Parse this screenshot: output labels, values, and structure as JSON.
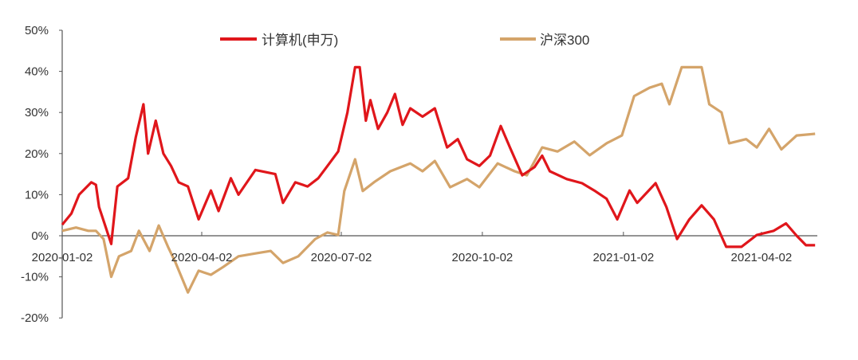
{
  "chart_data": {
    "type": "line",
    "title": "",
    "xlabel": "",
    "ylabel": "",
    "ylim": [
      -20,
      50
    ],
    "xlim": [
      "2020-01-02",
      "2021-05-07"
    ],
    "yticks": [
      "50%",
      "40%",
      "30%",
      "20%",
      "10%",
      "0%",
      "-10%",
      "-20%"
    ],
    "ytick_values": [
      50,
      40,
      30,
      20,
      10,
      0,
      -10,
      -20
    ],
    "xticks": [
      "2020-01-02",
      "2020-04-02",
      "2020-07-02",
      "2020-10-02",
      "2021-01-02",
      "2021-04-02"
    ],
    "grid": false,
    "legend_position": "top",
    "series": [
      {
        "name": "计算机(申万)",
        "color": "#e0161b",
        "points": [
          [
            "2020-01-02",
            2.7
          ],
          [
            "2020-01-08",
            5.4
          ],
          [
            "2020-01-13",
            10
          ],
          [
            "2020-01-21",
            13
          ],
          [
            "2020-01-24",
            12.4
          ],
          [
            "2020-01-26",
            7
          ],
          [
            "2020-02-03",
            -2
          ],
          [
            "2020-02-07",
            12
          ],
          [
            "2020-02-14",
            14
          ],
          [
            "2020-02-19",
            24
          ],
          [
            "2020-02-24",
            32
          ],
          [
            "2020-02-27",
            20
          ],
          [
            "2020-03-03",
            28
          ],
          [
            "2020-03-08",
            20
          ],
          [
            "2020-03-13",
            17
          ],
          [
            "2020-03-18",
            13
          ],
          [
            "2020-03-24",
            12
          ],
          [
            "2020-03-31",
            4
          ],
          [
            "2020-04-08",
            11
          ],
          [
            "2020-04-13",
            6
          ],
          [
            "2020-04-21",
            14
          ],
          [
            "2020-04-26",
            10
          ],
          [
            "2020-05-07",
            16
          ],
          [
            "2020-05-20",
            15
          ],
          [
            "2020-05-25",
            8
          ],
          [
            "2020-06-02",
            13
          ],
          [
            "2020-06-10",
            12
          ],
          [
            "2020-06-17",
            14
          ],
          [
            "2020-06-23",
            17
          ],
          [
            "2020-06-30",
            20.5
          ],
          [
            "2020-07-06",
            30
          ],
          [
            "2020-07-11",
            41
          ],
          [
            "2020-07-14",
            41
          ],
          [
            "2020-07-18",
            28
          ],
          [
            "2020-07-21",
            33
          ],
          [
            "2020-07-26",
            26
          ],
          [
            "2020-08-01",
            30
          ],
          [
            "2020-08-06",
            34.5
          ],
          [
            "2020-08-11",
            27
          ],
          [
            "2020-08-16",
            31
          ],
          [
            "2020-08-24",
            29
          ],
          [
            "2020-09-01",
            31
          ],
          [
            "2020-09-09",
            21.5
          ],
          [
            "2020-09-16",
            23.5
          ],
          [
            "2020-09-22",
            18.6
          ],
          [
            "2020-09-30",
            17
          ],
          [
            "2020-10-07",
            19.5
          ],
          [
            "2020-10-14",
            26.7
          ],
          [
            "2020-10-20",
            21.5
          ],
          [
            "2020-10-28",
            14.7
          ],
          [
            "2020-11-05",
            16.7
          ],
          [
            "2020-11-10",
            19.5
          ],
          [
            "2020-11-15",
            15.7
          ],
          [
            "2020-11-26",
            13.8
          ],
          [
            "2020-12-06",
            12.8
          ],
          [
            "2020-12-14",
            11
          ],
          [
            "2020-12-22",
            9
          ],
          [
            "2020-12-29",
            4
          ],
          [
            "2021-01-06",
            11
          ],
          [
            "2021-01-11",
            8
          ],
          [
            "2021-01-23",
            12.8
          ],
          [
            "2021-01-30",
            7
          ],
          [
            "2021-02-06",
            -0.8
          ],
          [
            "2021-02-14",
            4
          ],
          [
            "2021-02-22",
            7.4
          ],
          [
            "2021-03-02",
            4
          ],
          [
            "2021-03-10",
            -2.7
          ],
          [
            "2021-03-20",
            -2.7
          ],
          [
            "2021-03-30",
            0.2
          ],
          [
            "2021-04-10",
            1.2
          ],
          [
            "2021-04-18",
            3
          ],
          [
            "2021-04-25",
            0
          ],
          [
            "2021-05-01",
            -2.3
          ],
          [
            "2021-05-07",
            -2.3
          ]
        ]
      },
      {
        "name": "沪深300",
        "color": "#d4a46a",
        "points": [
          [
            "2020-01-02",
            1.2
          ],
          [
            "2020-01-11",
            2
          ],
          [
            "2020-01-19",
            1.2
          ],
          [
            "2020-01-24",
            1.2
          ],
          [
            "2020-01-29",
            -0.8
          ],
          [
            "2020-02-03",
            -10
          ],
          [
            "2020-02-08",
            -5
          ],
          [
            "2020-02-16",
            -3.7
          ],
          [
            "2020-02-21",
            1.2
          ],
          [
            "2020-02-28",
            -3.7
          ],
          [
            "2020-03-05",
            2.5
          ],
          [
            "2020-03-11",
            -2.7
          ],
          [
            "2020-03-16",
            -6.6
          ],
          [
            "2020-03-24",
            -13.8
          ],
          [
            "2020-03-31",
            -8.5
          ],
          [
            "2020-04-08",
            -9.5
          ],
          [
            "2020-04-16",
            -7.6
          ],
          [
            "2020-04-26",
            -5
          ],
          [
            "2020-05-07",
            -4.3
          ],
          [
            "2020-05-17",
            -3.7
          ],
          [
            "2020-05-25",
            -6.6
          ],
          [
            "2020-06-04",
            -5
          ],
          [
            "2020-06-15",
            -0.8
          ],
          [
            "2020-06-23",
            0.8
          ],
          [
            "2020-06-30",
            0.2
          ],
          [
            "2020-07-04",
            10.9
          ],
          [
            "2020-07-11",
            18.6
          ],
          [
            "2020-07-16",
            10.9
          ],
          [
            "2020-07-24",
            13.2
          ],
          [
            "2020-08-03",
            15.7
          ],
          [
            "2020-08-16",
            17.6
          ],
          [
            "2020-08-24",
            15.7
          ],
          [
            "2020-09-01",
            18.2
          ],
          [
            "2020-09-11",
            11.8
          ],
          [
            "2020-09-22",
            13.8
          ],
          [
            "2020-09-30",
            11.8
          ],
          [
            "2020-10-12",
            17.6
          ],
          [
            "2020-10-23",
            15.7
          ],
          [
            "2020-10-31",
            14.7
          ],
          [
            "2020-11-10",
            21.5
          ],
          [
            "2020-11-20",
            20.5
          ],
          [
            "2020-12-01",
            22.9
          ],
          [
            "2020-12-11",
            19.6
          ],
          [
            "2020-12-22",
            22.5
          ],
          [
            "2021-01-01",
            24.4
          ],
          [
            "2021-01-09",
            34
          ],
          [
            "2021-01-19",
            36
          ],
          [
            "2021-01-27",
            37
          ],
          [
            "2021-02-01",
            32
          ],
          [
            "2021-02-09",
            41
          ],
          [
            "2021-02-22",
            41
          ],
          [
            "2021-02-27",
            32
          ],
          [
            "2021-03-07",
            30
          ],
          [
            "2021-03-12",
            22.5
          ],
          [
            "2021-03-23",
            23.5
          ],
          [
            "2021-03-30",
            21.5
          ],
          [
            "2021-04-07",
            26
          ],
          [
            "2021-04-15",
            21
          ],
          [
            "2021-04-25",
            24.4
          ],
          [
            "2021-05-07",
            24.8
          ]
        ]
      }
    ]
  }
}
